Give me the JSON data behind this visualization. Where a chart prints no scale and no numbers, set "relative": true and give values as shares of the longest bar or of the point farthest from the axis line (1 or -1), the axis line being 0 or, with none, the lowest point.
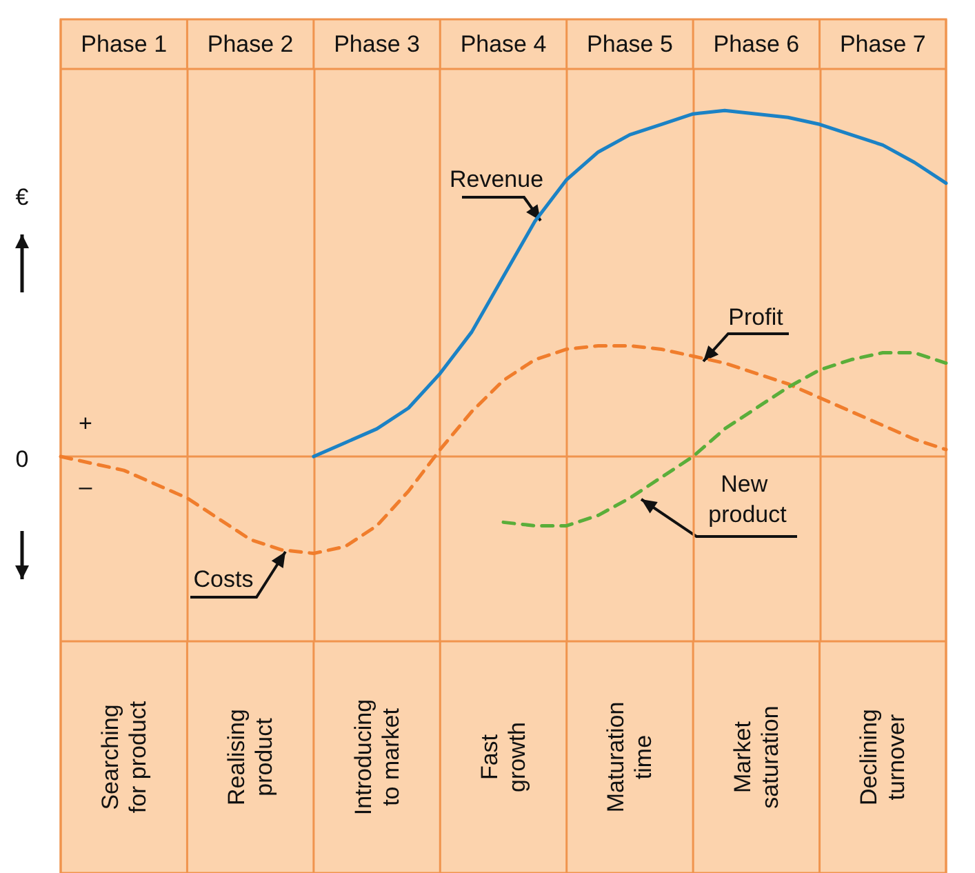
{
  "chart_data": {
    "type": "line",
    "relative": true,
    "ylabel": "€",
    "grid": "x",
    "marker": "none",
    "legend": false,
    "categories": [
      null,
      null,
      null,
      null,
      null,
      null,
      null,
      null,
      null,
      null,
      null,
      null,
      null,
      null,
      null,
      null,
      null,
      null,
      null,
      null,
      null,
      null,
      null,
      null,
      null,
      null,
      null,
      null,
      null
    ],
    "annotations": [
      "Phase 1",
      "Phase 2",
      "Phase 3",
      "Phase 4",
      "Phase 5",
      "Phase 6",
      "Phase 7",
      "Searching\nfor product",
      "Realising\nproduct",
      "Introducing\nto market",
      "Fast\ngrowth",
      "Maturation\ntime",
      "Market\nsaturation",
      "Declining\nturnover",
      "+",
      "–",
      "0",
      "Costs",
      "Profit"
    ],
    "series": [
      {
        "name": "Revenue",
        "color": "#1b82c5",
        "line_style": "solid",
        "values": [
          null,
          null,
          null,
          null,
          null,
          null,
          null,
          null,
          0,
          0.04,
          0.08,
          0.14,
          0.24,
          0.36,
          0.52,
          0.68,
          0.8,
          0.88,
          0.93,
          0.96,
          0.99,
          1,
          0.99,
          0.98,
          0.96,
          0.93,
          0.9,
          0.85,
          0.79
        ]
      },
      {
        "color": "#f07d2c",
        "line_style": "dashed",
        "values": [
          0,
          -0.02,
          -0.04,
          -0.08,
          -0.12,
          -0.18,
          -0.24,
          -0.27,
          -0.28,
          -0.26,
          -0.2,
          -0.1,
          0.02,
          0.13,
          0.22,
          0.28,
          0.31,
          0.32,
          0.32,
          0.31,
          0.29,
          0.27,
          0.24,
          0.21,
          0.17,
          0.13,
          0.09,
          0.05,
          0.02
        ]
      },
      {
        "name": "New product",
        "color": "#5aae3a",
        "line_style": "dashed",
        "values": [
          null,
          null,
          null,
          null,
          null,
          null,
          null,
          null,
          null,
          null,
          null,
          null,
          null,
          null,
          -0.19,
          -0.2,
          -0.2,
          -0.17,
          -0.12,
          -0.06,
          0,
          0.08,
          0.14,
          0.2,
          0.25,
          0.28,
          0.3,
          0.3,
          0.27
        ]
      }
    ]
  }
}
